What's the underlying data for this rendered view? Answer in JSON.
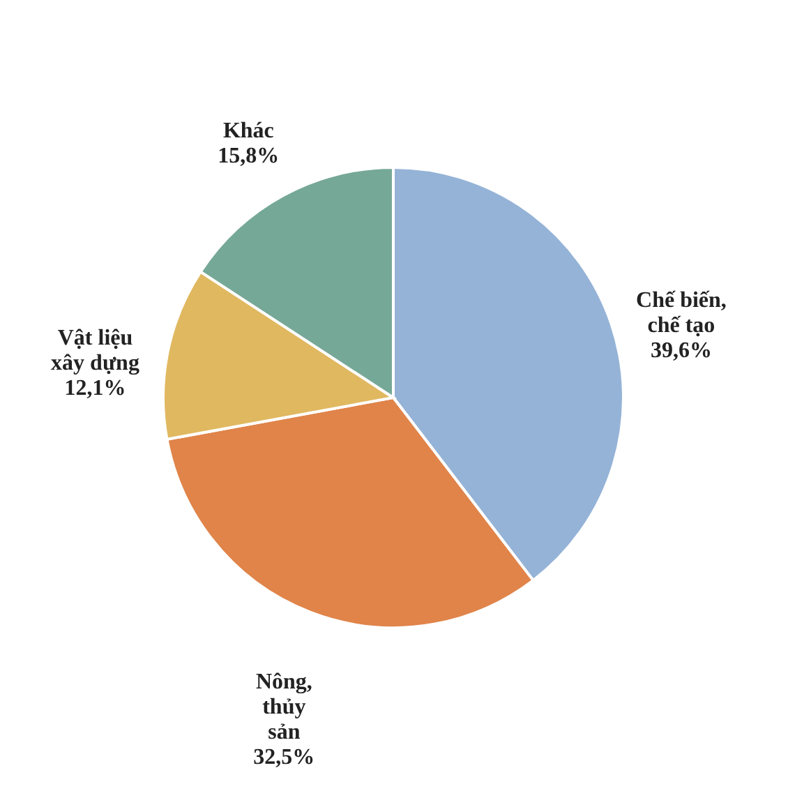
{
  "chart_data": {
    "type": "pie",
    "categories": [
      "Chế biến,\nchế tạo",
      "Nông,\nthủy\nsản",
      "Vật liệu\nxây dựng",
      "Khác"
    ],
    "values": [
      39.6,
      32.5,
      12.1,
      15.8
    ],
    "colors": [
      "#95b3d7",
      "#e0844a",
      "#e0b860",
      "#76a897"
    ],
    "value_labels": [
      "39,6%",
      "32,5%",
      "12,1%",
      "15,8%"
    ]
  }
}
